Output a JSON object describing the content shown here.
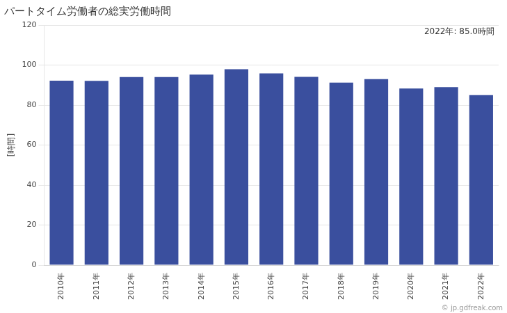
{
  "chart_data": {
    "type": "bar",
    "title": "パートタイム労働者の総実労働時間",
    "ylabel": "[時間]",
    "annotations": [
      "2022年: 85.0時間",
      "© jp.gdfreak.com"
    ],
    "categories": [
      "2010年",
      "2011年",
      "2012年",
      "2013年",
      "2014年",
      "2015年",
      "2016年",
      "2017年",
      "2018年",
      "2019年",
      "2020年",
      "2021年",
      "2022年"
    ],
    "values": [
      92.2,
      92.1,
      94.0,
      94.0,
      95.2,
      97.9,
      95.8,
      94.1,
      91.2,
      93.0,
      88.3,
      89.0,
      85.0
    ],
    "color": "#3a4f9e",
    "ylim": [
      0,
      120
    ],
    "yticks": [
      0,
      20,
      40,
      60,
      80,
      100,
      120
    ],
    "grid": true
  }
}
